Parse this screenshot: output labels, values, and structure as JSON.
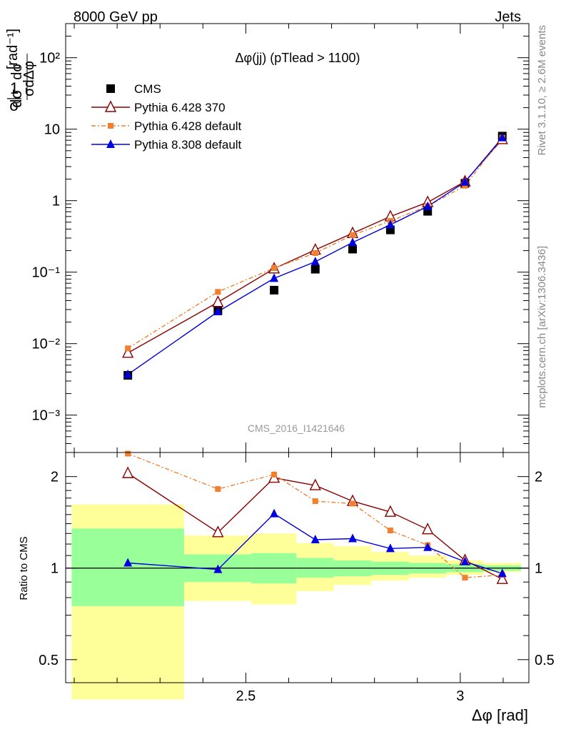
{
  "header": {
    "left": "8000 GeV pp",
    "right": "Jets"
  },
  "chart_data": {
    "type": "line",
    "title": "Δφ(jj) (pTlead >  1100)",
    "watermark": "CMS_2016_I1421646",
    "side_label_top": "Rivet 3.1.10, ≥ 2.6M events",
    "side_label_bottom": "mcplots.cern.ch [arXiv:1306.3436]",
    "xlabel": "Δφ [rad]",
    "ylabel_top": "1/σ dσ/dΔφ [rad⁻¹]",
    "ylabel_bottom": "Ratio to CMS",
    "xlim": [
      2.08,
      3.16
    ],
    "top_ylim": [
      0.0003,
      300
    ],
    "top_yscale": "log",
    "bottom_ylim": [
      0.42,
      2.4
    ],
    "bottom_yscale": "log",
    "x_ticks": [
      "2.5",
      "3"
    ],
    "top_y_ticks": [
      "10⁻³",
      "10⁻²",
      "10⁻¹",
      "1",
      "10",
      "10²"
    ],
    "bottom_y_ticks": [
      "0.5",
      "1",
      "2"
    ],
    "legend_position": "top-left",
    "bin_edges": [
      2.094,
      2.356,
      2.513,
      2.618,
      2.705,
      2.793,
      2.88,
      2.967,
      3.054,
      3.142
    ],
    "x": [
      2.225,
      2.435,
      2.566,
      2.662,
      2.749,
      2.837,
      2.924,
      3.011,
      3.098
    ],
    "series": [
      {
        "name": "CMS",
        "values": [
          0.0036,
          0.029,
          0.056,
          0.11,
          0.21,
          0.39,
          0.71,
          1.75,
          8.0
        ],
        "color": "#000000",
        "marker": "square"
      },
      {
        "name": "Pythia 6.428 370",
        "values": [
          0.0074,
          0.038,
          0.112,
          0.205,
          0.35,
          0.6,
          0.95,
          1.85,
          7.2
        ],
        "ratio": [
          2.05,
          1.31,
          1.98,
          1.87,
          1.66,
          1.53,
          1.34,
          1.06,
          0.92
        ],
        "color": "#8b0000",
        "marker": "triangle-open"
      },
      {
        "name": "Pythia 6.428 default",
        "values": [
          0.0086,
          0.053,
          0.114,
          0.185,
          0.33,
          0.52,
          0.84,
          1.62,
          7.6
        ],
        "ratio": [
          2.38,
          1.82,
          2.03,
          1.66,
          1.63,
          1.33,
          1.19,
          0.93,
          0.95
        ],
        "color": "#f08030",
        "marker": "square-small"
      },
      {
        "name": "Pythia 8.308 default",
        "values": [
          0.0037,
          0.028,
          0.082,
          0.14,
          0.26,
          0.46,
          0.83,
          1.82,
          7.6
        ],
        "ratio": [
          1.04,
          0.99,
          1.51,
          1.24,
          1.25,
          1.16,
          1.17,
          1.05,
          0.96
        ],
        "color": "#0000e0",
        "marker": "triangle"
      }
    ],
    "ratio_bands": {
      "stat": [
        [
          0.75,
          1.35
        ],
        [
          0.9,
          1.11
        ],
        [
          0.89,
          1.12
        ],
        [
          0.93,
          1.08
        ],
        [
          0.94,
          1.06
        ],
        [
          0.95,
          1.05
        ],
        [
          0.96,
          1.04
        ],
        [
          0.97,
          1.03
        ],
        [
          0.98,
          1.02
        ]
      ],
      "total": [
        [
          0.37,
          1.62
        ],
        [
          0.78,
          1.28
        ],
        [
          0.76,
          1.3
        ],
        [
          0.84,
          1.21
        ],
        [
          0.88,
          1.18
        ],
        [
          0.91,
          1.13
        ],
        [
          0.93,
          1.1
        ],
        [
          0.95,
          1.06
        ],
        [
          0.97,
          1.04
        ]
      ],
      "stat_color": "#99ff99",
      "total_color": "#ffff99"
    }
  }
}
